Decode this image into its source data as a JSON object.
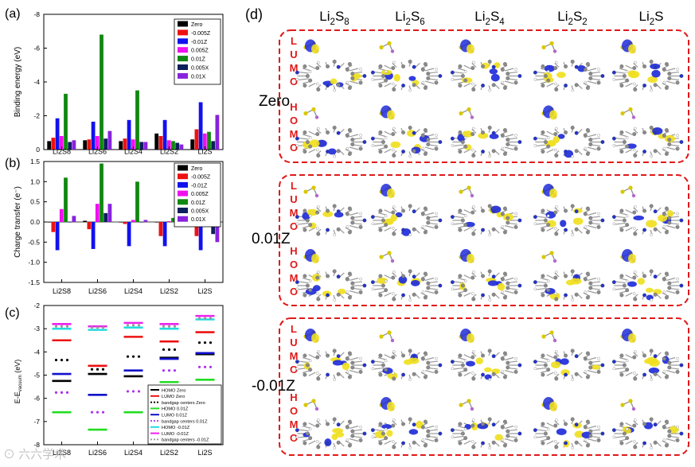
{
  "chart_data": [
    {
      "panel": "(a)",
      "type": "bar",
      "ylabel": "Binding energy (eV)",
      "ylim": [
        0,
        -8
      ],
      "yticks": [
        0,
        -2,
        -4,
        -6,
        -8
      ],
      "categories": [
        "Li2S8",
        "Li2S6",
        "Li2S4",
        "Li2S2",
        "Li2S"
      ],
      "series": [
        {
          "name": "Zero",
          "color": "#000000",
          "values": [
            -0.5,
            -0.55,
            -0.5,
            -0.95,
            -0.6
          ]
        },
        {
          "name": "-0.005Z",
          "color": "#ee1111",
          "values": [
            -0.7,
            -0.6,
            -0.65,
            -0.8,
            -1.2
          ]
        },
        {
          "name": "-0.01Z",
          "color": "#1111ee",
          "values": [
            -1.85,
            -1.65,
            -1.75,
            -1.75,
            -2.8
          ]
        },
        {
          "name": "0.005Z",
          "color": "#ee11ee",
          "values": [
            -0.8,
            -0.8,
            -0.6,
            -0.55,
            -0.95
          ]
        },
        {
          "name": "0.01Z",
          "color": "#118811",
          "values": [
            -3.3,
            -6.8,
            -3.5,
            -0.5,
            -1.05
          ]
        },
        {
          "name": "0.005X",
          "color": "#0d1f5c",
          "values": [
            -0.45,
            -0.65,
            -0.45,
            -0.4,
            -0.5
          ]
        },
        {
          "name": "0.01X",
          "color": "#8822dd",
          "values": [
            -0.55,
            -1.1,
            -0.45,
            -0.3,
            -2.05
          ]
        }
      ]
    },
    {
      "panel": "(b)",
      "type": "bar",
      "ylabel": "Charge transfer (e⁻)",
      "ylim": [
        -1.5,
        1.5
      ],
      "yticks": [
        1.5,
        1.0,
        0.5,
        0.0,
        -0.5,
        -1.0,
        -1.5
      ],
      "categories": [
        "Li2S8",
        "Li2S6",
        "Li2S4",
        "Li2S2",
        "Li2S"
      ],
      "series": [
        {
          "name": "Zero",
          "color": "#000000",
          "values": [
            0.0,
            0.03,
            0.0,
            0.0,
            -0.1
          ]
        },
        {
          "name": "-0.005Z",
          "color": "#ee1111",
          "values": [
            -0.25,
            -0.18,
            -0.05,
            -0.35,
            -0.35
          ]
        },
        {
          "name": "-0.01Z",
          "color": "#1111ee",
          "values": [
            -0.7,
            -0.67,
            -0.6,
            -0.6,
            -0.7
          ]
        },
        {
          "name": "0.005Z",
          "color": "#ee11ee",
          "values": [
            0.32,
            0.45,
            0.05,
            0.02,
            0.0
          ]
        },
        {
          "name": "0.01Z",
          "color": "#118811",
          "values": [
            1.1,
            1.45,
            1.0,
            0.1,
            0.0
          ]
        },
        {
          "name": "0.005X",
          "color": "#0d1f5c",
          "values": [
            0.0,
            0.22,
            0.0,
            0.0,
            -0.3
          ]
        },
        {
          "name": "0.01X",
          "color": "#8822dd",
          "values": [
            0.15,
            0.45,
            0.05,
            -0.05,
            -0.5
          ]
        }
      ]
    },
    {
      "panel": "(c)",
      "type": "scatter",
      "ylabel": "E-E",
      "ylabel_sub": "vacuum",
      "ylabel_unit": " (eV)",
      "ylim": [
        -8,
        -2
      ],
      "yticks": [
        -2,
        -3,
        -4,
        -5,
        -6,
        -7,
        -8
      ],
      "categories": [
        "Li2S8",
        "Li2S6",
        "Li2S4",
        "Li2S2",
        "Li2S"
      ],
      "series": [
        {
          "name": "HOMO Zero",
          "style": "line",
          "color": "#000000",
          "values": [
            -5.25,
            -4.95,
            -5.05,
            -4.25,
            -4.1
          ]
        },
        {
          "name": "LUMO Zero",
          "style": "line",
          "color": "#ee1111",
          "values": [
            -3.5,
            -4.6,
            -3.35,
            -3.55,
            -3.15
          ]
        },
        {
          "name": "bandgap centers Zero",
          "style": "dots",
          "color": "#000000",
          "values": [
            -4.35,
            -4.75,
            -4.2,
            -3.9,
            -3.6
          ]
        },
        {
          "name": "HOMO 0.01Z",
          "style": "line",
          "color": "#22dd22",
          "values": [
            -6.6,
            -7.35,
            -6.6,
            -5.3,
            -5.2
          ]
        },
        {
          "name": "LUMO 0.01Z",
          "style": "line",
          "color": "#1111cc",
          "values": [
            -4.95,
            -5.85,
            -4.8,
            -4.3,
            -4.05
          ]
        },
        {
          "name": "bandgap centers 0.01Z",
          "style": "dots",
          "color": "#aa33ee",
          "values": [
            -5.75,
            -6.6,
            -5.7,
            -4.8,
            -4.65
          ]
        },
        {
          "name": "HOMO -0.01Z",
          "style": "line",
          "color": "#22dddd",
          "values": [
            -3.0,
            -3.05,
            -2.95,
            -3.0,
            -2.6
          ]
        },
        {
          "name": "LUMO -0.01Z",
          "style": "line",
          "color": "#ee22ee",
          "values": [
            -2.8,
            -2.9,
            -2.75,
            -2.8,
            -2.45
          ]
        },
        {
          "name": "bandgap centers -0.01Z",
          "style": "dots",
          "color": "#999999",
          "values": [
            -2.9,
            -2.95,
            -2.85,
            -2.9,
            -2.55
          ]
        }
      ]
    }
  ],
  "panel_d": {
    "label": "(d)",
    "columns": [
      "Li2S8",
      "Li2S6",
      "Li2S4",
      "Li2S2",
      "Li2S"
    ],
    "groups": [
      {
        "label": "Zero",
        "rows": [
          "LUMO",
          "HOMO"
        ]
      },
      {
        "label": "0.01Z",
        "rows": [
          "LUMO",
          "HOMO"
        ]
      },
      {
        "label": "-0.01Z",
        "rows": [
          "LUMO",
          "HOMO"
        ]
      }
    ]
  },
  "colors": {
    "border_dash": "#e01919",
    "orbital_blue": "#1f2cd9",
    "orbital_yellow": "#f0e020",
    "carbon": "#8a8a8a",
    "nitrogen": "#2233cc",
    "lithium": "#b266cc",
    "sulfur": "#d8c800"
  },
  "watermark": "六六学术"
}
